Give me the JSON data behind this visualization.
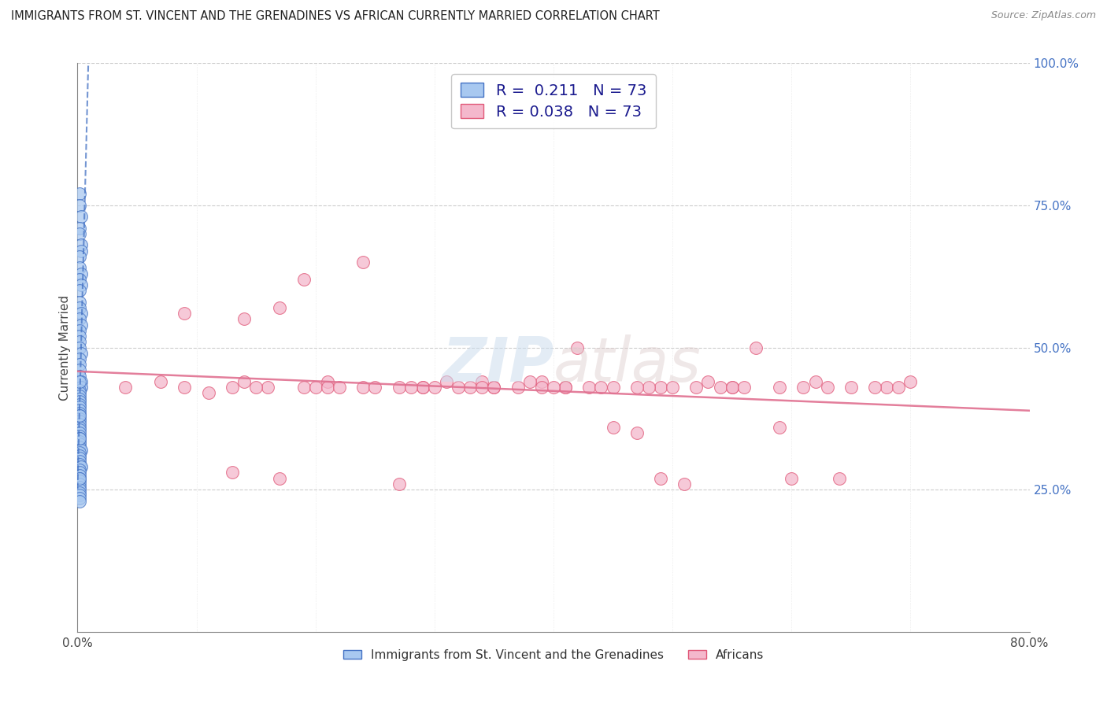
{
  "title": "IMMIGRANTS FROM ST. VINCENT AND THE GRENADINES VS AFRICAN CURRENTLY MARRIED CORRELATION CHART",
  "source": "Source: ZipAtlas.com",
  "ylabel": "Currently Married",
  "xlim": [
    0.0,
    0.8
  ],
  "ylim": [
    0.0,
    1.0
  ],
  "xtick_positions": [
    0.0,
    0.1,
    0.2,
    0.3,
    0.4,
    0.5,
    0.6,
    0.7,
    0.8
  ],
  "xtick_labels": [
    "0.0%",
    "",
    "",
    "",
    "",
    "",
    "",
    "",
    "80.0%"
  ],
  "ytick_positions": [
    0.25,
    0.5,
    0.75,
    1.0
  ],
  "ytick_labels": [
    "25.0%",
    "50.0%",
    "75.0%",
    "100.0%"
  ],
  "watermark": "ZIPatlas",
  "blue_fill": "#A8C8F0",
  "blue_edge": "#4472C4",
  "pink_fill": "#F4B8CC",
  "pink_edge": "#E05878",
  "pink_line_color": "#E07090",
  "blue_line_color": "#4472C4",
  "legend_R_blue": "0.211",
  "legend_N_blue": "73",
  "legend_R_pink": "0.038",
  "legend_N_pink": "73",
  "blue_x": [
    0.002,
    0.002,
    0.003,
    0.002,
    0.002,
    0.003,
    0.003,
    0.002,
    0.002,
    0.003,
    0.002,
    0.003,
    0.002,
    0.002,
    0.002,
    0.003,
    0.002,
    0.003,
    0.002,
    0.002,
    0.002,
    0.002,
    0.003,
    0.002,
    0.002,
    0.002,
    0.002,
    0.003,
    0.003,
    0.002,
    0.002,
    0.002,
    0.002,
    0.002,
    0.002,
    0.002,
    0.002,
    0.002,
    0.002,
    0.002,
    0.002,
    0.002,
    0.002,
    0.002,
    0.002,
    0.002,
    0.002,
    0.002,
    0.002,
    0.002,
    0.003,
    0.002,
    0.002,
    0.002,
    0.002,
    0.002,
    0.003,
    0.002,
    0.002,
    0.002,
    0.002,
    0.002,
    0.002,
    0.002,
    0.002,
    0.002,
    0.002,
    0.002,
    0.002,
    0.002,
    0.002,
    0.002,
    0.002
  ],
  "blue_y": [
    0.77,
    0.75,
    0.73,
    0.71,
    0.7,
    0.68,
    0.67,
    0.66,
    0.64,
    0.63,
    0.62,
    0.61,
    0.6,
    0.58,
    0.57,
    0.56,
    0.55,
    0.54,
    0.53,
    0.52,
    0.51,
    0.5,
    0.49,
    0.48,
    0.47,
    0.46,
    0.45,
    0.44,
    0.43,
    0.425,
    0.42,
    0.415,
    0.41,
    0.405,
    0.4,
    0.395,
    0.39,
    0.385,
    0.38,
    0.375,
    0.37,
    0.365,
    0.36,
    0.355,
    0.35,
    0.345,
    0.34,
    0.335,
    0.33,
    0.325,
    0.32,
    0.315,
    0.31,
    0.305,
    0.3,
    0.295,
    0.29,
    0.285,
    0.28,
    0.275,
    0.27,
    0.265,
    0.26,
    0.255,
    0.25,
    0.245,
    0.24,
    0.235,
    0.23,
    0.34,
    0.44,
    0.38,
    0.27
  ],
  "pink_x": [
    0.04,
    0.07,
    0.09,
    0.11,
    0.13,
    0.14,
    0.16,
    0.17,
    0.19,
    0.21,
    0.24,
    0.27,
    0.29,
    0.31,
    0.33,
    0.35,
    0.37,
    0.39,
    0.41,
    0.43,
    0.45,
    0.47,
    0.49,
    0.51,
    0.53,
    0.55,
    0.57,
    0.59,
    0.62,
    0.65,
    0.68,
    0.7,
    0.09,
    0.14,
    0.19,
    0.24,
    0.29,
    0.34,
    0.39,
    0.44,
    0.49,
    0.54,
    0.59,
    0.64,
    0.69,
    0.13,
    0.2,
    0.27,
    0.34,
    0.41,
    0.48,
    0.55,
    0.6,
    0.45,
    0.38,
    0.32,
    0.25,
    0.17,
    0.52,
    0.42,
    0.35,
    0.28,
    0.21,
    0.47,
    0.56,
    0.63,
    0.67,
    0.15,
    0.22,
    0.3,
    0.4,
    0.5,
    0.61
  ],
  "pink_y": [
    0.43,
    0.44,
    0.43,
    0.42,
    0.28,
    0.44,
    0.43,
    0.27,
    0.43,
    0.44,
    0.43,
    0.26,
    0.43,
    0.44,
    0.43,
    0.43,
    0.43,
    0.44,
    0.43,
    0.43,
    0.36,
    0.35,
    0.27,
    0.26,
    0.44,
    0.43,
    0.5,
    0.36,
    0.44,
    0.43,
    0.43,
    0.44,
    0.56,
    0.55,
    0.62,
    0.65,
    0.43,
    0.44,
    0.43,
    0.43,
    0.43,
    0.43,
    0.43,
    0.27,
    0.43,
    0.43,
    0.43,
    0.43,
    0.43,
    0.43,
    0.43,
    0.43,
    0.27,
    0.43,
    0.44,
    0.43,
    0.43,
    0.57,
    0.43,
    0.5,
    0.43,
    0.43,
    0.43,
    0.43,
    0.43,
    0.43,
    0.43,
    0.43,
    0.43,
    0.43,
    0.43,
    0.43,
    0.43
  ],
  "background_color": "#FFFFFF",
  "grid_color": "#CCCCCC"
}
